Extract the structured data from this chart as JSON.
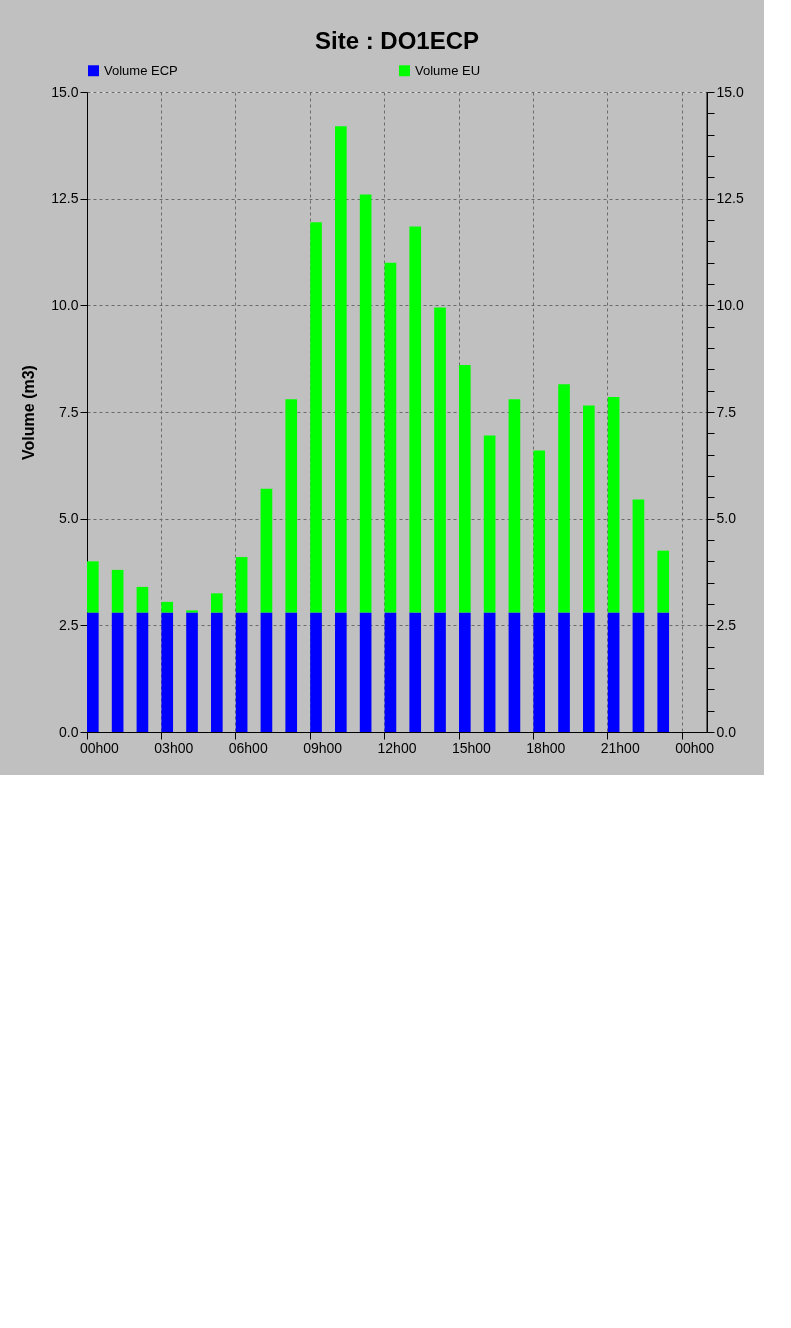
{
  "chart_data": {
    "type": "bar",
    "title": "Site : DO1ECP",
    "ylabel": "Volume (m3)",
    "categories": [
      "00h00",
      null,
      null,
      "03h00",
      null,
      null,
      "06h00",
      null,
      null,
      "09h00",
      null,
      null,
      "12h00",
      null,
      null,
      "15h00",
      null,
      null,
      "18h00",
      null,
      null,
      "21h00",
      null,
      null,
      "00h00"
    ],
    "ylim": [
      0,
      15
    ],
    "yticks": [
      {
        "value": 0,
        "label": "0.0"
      },
      {
        "value": 2.5,
        "label": "2.5"
      },
      {
        "value": 5,
        "label": "5.0"
      },
      {
        "value": 7.5,
        "label": "7.5"
      },
      {
        "value": 10,
        "label": "10.0"
      },
      {
        "value": 12.5,
        "label": "12.5"
      },
      {
        "value": 15,
        "label": "15.0"
      }
    ],
    "y2lim": [
      0,
      15
    ],
    "y2ticks": [
      {
        "value": 0,
        "label": "0.0"
      },
      {
        "value": 0.5,
        "label": null
      },
      {
        "value": 1,
        "label": null
      },
      {
        "value": 1.5,
        "label": null
      },
      {
        "value": 2,
        "label": null
      },
      {
        "value": 2.5,
        "label": "2.5"
      },
      {
        "value": 3,
        "label": null
      },
      {
        "value": 3.5,
        "label": null
      },
      {
        "value": 4,
        "label": null
      },
      {
        "value": 4.5,
        "label": null
      },
      {
        "value": 5,
        "label": "5.0"
      },
      {
        "value": 5.5,
        "label": null
      },
      {
        "value": 6,
        "label": null
      },
      {
        "value": 6.5,
        "label": null
      },
      {
        "value": 7,
        "label": null
      },
      {
        "value": 7.5,
        "label": "7.5"
      },
      {
        "value": 8,
        "label": null
      },
      {
        "value": 8.5,
        "label": null
      },
      {
        "value": 9,
        "label": null
      },
      {
        "value": 9.5,
        "label": null
      },
      {
        "value": 10,
        "label": "10.0"
      },
      {
        "value": 10.5,
        "label": null
      },
      {
        "value": 11,
        "label": null
      },
      {
        "value": 11.5,
        "label": null
      },
      {
        "value": 12,
        "label": null
      },
      {
        "value": 12.5,
        "label": "12.5"
      },
      {
        "value": 13,
        "label": null
      },
      {
        "value": 13.5,
        "label": null
      },
      {
        "value": 14,
        "label": null
      },
      {
        "value": 14.5,
        "label": null
      },
      {
        "value": 15,
        "label": "15.0"
      }
    ],
    "stacked": true,
    "grid": true,
    "legend": "top",
    "series": [
      {
        "name": "Volume ECP",
        "color": "#0000ff",
        "values": [
          2.8,
          2.8,
          2.8,
          2.8,
          2.8,
          2.8,
          2.8,
          2.8,
          2.8,
          2.8,
          2.8,
          2.8,
          2.8,
          2.8,
          2.8,
          2.8,
          2.8,
          2.8,
          2.8,
          2.8,
          2.8,
          2.8,
          2.8,
          2.8,
          null
        ]
      },
      {
        "name": "Volume EU",
        "color": "#00ff00",
        "values": [
          1.2,
          1.0,
          0.6,
          0.25,
          0.05,
          0.45,
          1.3,
          2.9,
          5.0,
          9.15,
          11.4,
          9.8,
          8.2,
          9.05,
          7.15,
          5.8,
          4.15,
          5.0,
          3.8,
          5.35,
          4.85,
          5.05,
          2.65,
          1.45,
          null
        ]
      }
    ]
  }
}
